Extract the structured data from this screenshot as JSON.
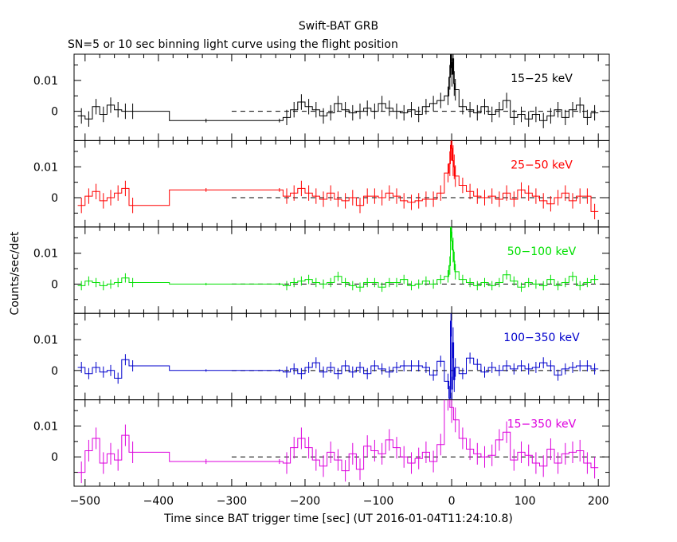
{
  "title": "Swift-BAT GRB",
  "subtitle": "SN=5 or 10 sec binning light curve using the flight position",
  "chart_data": {
    "type": "line",
    "title": "Swift-BAT GRB",
    "subtitle": "SN=5 or 10 sec binning light curve using the flight position",
    "xlabel": "Time since BAT trigger time [sec] (UT 2016-01-04T11:24:10.8)",
    "ylabel": "Counts/sec/det",
    "xlim": [
      -515,
      215
    ],
    "ylim": [
      -0.0095,
      0.0185
    ],
    "x_ticks": [
      -500,
      -400,
      -300,
      -200,
      -100,
      0,
      100,
      200
    ],
    "x_tick_labels": [
      "−500",
      "−400",
      "−300",
      "−200",
      "−100",
      "0",
      "100",
      "200"
    ],
    "y_ticks": [
      0,
      0.01
    ],
    "y_tick_labels": [
      "0",
      "0.01"
    ],
    "gap": [
      -335,
      -235
    ],
    "panels": [
      {
        "name": "15−25 keV",
        "color": "#000000",
        "x": [
          -505,
          -495,
          -485,
          -475,
          -465,
          -455,
          -445,
          -435,
          -335,
          -235,
          -225,
          -215,
          -205,
          -195,
          -185,
          -175,
          -165,
          -155,
          -145,
          -135,
          -125,
          -115,
          -105,
          -95,
          -85,
          -75,
          -65,
          -55,
          -45,
          -35,
          -25,
          -15,
          -5,
          -2.5,
          -1,
          0.5,
          2,
          3.5,
          5,
          15,
          25,
          35,
          45,
          55,
          65,
          75,
          85,
          95,
          105,
          115,
          125,
          135,
          145,
          155,
          165,
          175,
          185,
          195
        ],
        "values": [
          -0.0015,
          -0.0025,
          0.0015,
          -0.001,
          0.002,
          0.0005,
          0.0,
          0.0,
          -0.003,
          -0.003,
          -0.002,
          0.0005,
          0.003,
          0.0015,
          0.0005,
          -0.0015,
          -0.0005,
          0.0025,
          0.0005,
          -0.0005,
          0.0,
          0.001,
          0.0,
          0.0025,
          0.001,
          0.0,
          -0.0005,
          0.0005,
          -0.001,
          0.0015,
          0.0025,
          0.0035,
          0.005,
          0.011,
          0.019,
          0.012,
          0.017,
          0.009,
          0.007,
          0.0015,
          0.0005,
          -0.0005,
          0.0015,
          -0.001,
          0.0005,
          0.0035,
          -0.002,
          -0.001,
          -0.0025,
          -0.001,
          -0.003,
          -0.0015,
          0.0005,
          -0.002,
          0.0005,
          0.002,
          -0.002,
          -0.0005
        ],
        "errors": [
          0.0025,
          0.0025,
          0.0025,
          0.0025,
          0.0025,
          0.0025,
          0.0025,
          0.0025,
          0.0006,
          0.0006,
          0.0025,
          0.0025,
          0.0025,
          0.0025,
          0.0025,
          0.0025,
          0.0025,
          0.0025,
          0.0025,
          0.0025,
          0.0025,
          0.0025,
          0.0025,
          0.0025,
          0.0025,
          0.0025,
          0.0025,
          0.0025,
          0.0025,
          0.0025,
          0.0025,
          0.0025,
          0.003,
          0.004,
          0.005,
          0.004,
          0.005,
          0.004,
          0.0035,
          0.0025,
          0.0025,
          0.0025,
          0.0025,
          0.0025,
          0.0025,
          0.0025,
          0.0025,
          0.0025,
          0.0025,
          0.0025,
          0.0025,
          0.0025,
          0.0025,
          0.0025,
          0.0025,
          0.0025,
          0.0025,
          0.0025
        ]
      },
      {
        "name": "25−50 keV",
        "color": "#ff0000",
        "x": [
          -505,
          -495,
          -485,
          -475,
          -465,
          -455,
          -445,
          -435,
          -335,
          -235,
          -225,
          -215,
          -205,
          -195,
          -185,
          -175,
          -165,
          -155,
          -145,
          -135,
          -125,
          -115,
          -105,
          -95,
          -85,
          -75,
          -65,
          -55,
          -45,
          -35,
          -25,
          -15,
          -5,
          -2.5,
          -1,
          0.5,
          2,
          3.5,
          5,
          15,
          25,
          35,
          45,
          55,
          65,
          75,
          85,
          95,
          105,
          115,
          125,
          135,
          145,
          155,
          165,
          175,
          185,
          195
        ],
        "values": [
          -0.0025,
          0.0005,
          0.002,
          -0.001,
          0.0,
          0.0015,
          0.003,
          -0.0025,
          0.0025,
          0.0025,
          0.0005,
          0.0015,
          0.003,
          0.0015,
          0.0005,
          -0.0005,
          0.0015,
          -0.0005,
          -0.001,
          0.0,
          -0.0025,
          0.0005,
          0.0005,
          0.0,
          0.0015,
          0.0005,
          -0.001,
          -0.0015,
          -0.001,
          -0.0005,
          -0.0005,
          0.0015,
          0.008,
          0.011,
          0.017,
          0.016,
          0.012,
          0.01,
          0.007,
          0.004,
          0.002,
          0.0005,
          0.0,
          0.0005,
          -0.0005,
          0.0015,
          -0.0005,
          0.0025,
          0.0015,
          0.0005,
          -0.001,
          -0.002,
          0.0,
          0.0015,
          -0.001,
          0.0005,
          0.0005,
          -0.0045
        ],
        "errors": [
          0.0025,
          0.0025,
          0.0025,
          0.0025,
          0.0025,
          0.0025,
          0.0025,
          0.0025,
          0.0006,
          0.0006,
          0.0025,
          0.0025,
          0.0025,
          0.0025,
          0.0025,
          0.0025,
          0.0025,
          0.0025,
          0.0025,
          0.0025,
          0.0025,
          0.0025,
          0.0025,
          0.0025,
          0.0025,
          0.0025,
          0.0025,
          0.0025,
          0.0025,
          0.0025,
          0.0025,
          0.0025,
          0.003,
          0.004,
          0.005,
          0.004,
          0.005,
          0.004,
          0.0035,
          0.0025,
          0.0025,
          0.0025,
          0.0025,
          0.0025,
          0.0025,
          0.0025,
          0.0025,
          0.0025,
          0.0025,
          0.0025,
          0.0025,
          0.0025,
          0.0025,
          0.0025,
          0.0025,
          0.0025,
          0.0025,
          0.0025
        ]
      },
      {
        "name": "50−100 keV",
        "color": "#00e000",
        "x": [
          -505,
          -495,
          -485,
          -475,
          -465,
          -455,
          -445,
          -435,
          -335,
          -235,
          -225,
          -215,
          -205,
          -195,
          -185,
          -175,
          -165,
          -155,
          -145,
          -135,
          -125,
          -115,
          -105,
          -95,
          -85,
          -75,
          -65,
          -55,
          -45,
          -35,
          -25,
          -15,
          -5,
          -2.5,
          -1,
          0.5,
          2,
          3.5,
          5,
          15,
          25,
          35,
          45,
          55,
          65,
          75,
          85,
          95,
          105,
          115,
          125,
          135,
          145,
          155,
          165,
          175,
          185,
          195
        ],
        "values": [
          -0.0005,
          0.001,
          0.0005,
          -0.0005,
          0.0,
          0.0005,
          0.002,
          0.0005,
          0.0,
          0.0,
          -0.0005,
          0.0005,
          0.001,
          0.0015,
          0.0005,
          0.0,
          0.0005,
          0.0025,
          0.0005,
          -0.0005,
          -0.001,
          0.0005,
          0.0005,
          -0.001,
          0.0005,
          0.0005,
          0.0015,
          -0.0005,
          0.0,
          0.001,
          0.0,
          0.0015,
          0.0025,
          0.006,
          0.019,
          0.014,
          0.011,
          0.0075,
          0.004,
          0.0015,
          0.0005,
          -0.0005,
          0.0005,
          -0.0005,
          0.0005,
          0.003,
          0.001,
          -0.001,
          0.0005,
          0.0,
          -0.0005,
          0.0015,
          -0.0005,
          0.0005,
          0.0025,
          -0.0005,
          0.0005,
          0.0015
        ],
        "errors": [
          0.0015,
          0.0015,
          0.0015,
          0.0015,
          0.0015,
          0.0015,
          0.0015,
          0.0015,
          0.0004,
          0.0004,
          0.0015,
          0.0015,
          0.0015,
          0.0015,
          0.0015,
          0.0015,
          0.0015,
          0.0015,
          0.0015,
          0.0015,
          0.0015,
          0.0015,
          0.0015,
          0.0015,
          0.0015,
          0.0015,
          0.0015,
          0.0015,
          0.0015,
          0.0015,
          0.0015,
          0.0015,
          0.002,
          0.003,
          0.004,
          0.003,
          0.004,
          0.003,
          0.0025,
          0.0015,
          0.0015,
          0.0015,
          0.0015,
          0.0015,
          0.0015,
          0.0015,
          0.0015,
          0.0015,
          0.0015,
          0.0015,
          0.0015,
          0.0015,
          0.0015,
          0.0015,
          0.0015,
          0.0015,
          0.0015,
          0.0015
        ]
      },
      {
        "name": "100−350 keV",
        "color": "#0000cc",
        "x": [
          -505,
          -495,
          -485,
          -475,
          -465,
          -455,
          -445,
          -435,
          -335,
          -235,
          -225,
          -215,
          -205,
          -195,
          -185,
          -175,
          -165,
          -155,
          -145,
          -135,
          -125,
          -115,
          -105,
          -95,
          -85,
          -75,
          -65,
          -55,
          -45,
          -35,
          -25,
          -15,
          -5,
          -2.5,
          -1,
          0.5,
          2,
          3.5,
          5,
          15,
          25,
          35,
          45,
          55,
          65,
          75,
          85,
          95,
          105,
          115,
          125,
          135,
          145,
          155,
          165,
          175,
          185,
          195
        ],
        "values": [
          0.001,
          -0.001,
          0.001,
          -0.0005,
          0.0,
          -0.0025,
          0.0035,
          0.0015,
          0.0,
          0.0,
          -0.0005,
          0.0005,
          -0.001,
          0.001,
          0.0025,
          -0.0005,
          0.001,
          -0.001,
          0.0015,
          -0.0005,
          0.001,
          -0.001,
          0.0015,
          0.0005,
          -0.0005,
          0.001,
          0.0015,
          0.0015,
          0.0015,
          0.001,
          -0.0015,
          0.003,
          -0.0035,
          -0.009,
          0.016,
          -0.006,
          0.009,
          -0.003,
          0.001,
          -0.001,
          0.004,
          0.002,
          -0.0005,
          0.001,
          0.0,
          0.0015,
          0.0005,
          0.0015,
          0.0005,
          0.001,
          0.0025,
          0.0015,
          -0.0015,
          0.0005,
          0.001,
          0.0015,
          0.0015,
          0.0005
        ],
        "errors": [
          0.0018,
          0.0018,
          0.0018,
          0.0018,
          0.0018,
          0.0018,
          0.0018,
          0.0018,
          0.0004,
          0.0004,
          0.0018,
          0.0018,
          0.0018,
          0.0018,
          0.0018,
          0.0018,
          0.0018,
          0.0018,
          0.0018,
          0.0018,
          0.0018,
          0.0018,
          0.0018,
          0.0018,
          0.0018,
          0.0018,
          0.0018,
          0.0018,
          0.0018,
          0.0018,
          0.0018,
          0.0018,
          0.0025,
          0.004,
          0.005,
          0.004,
          0.005,
          0.004,
          0.003,
          0.0018,
          0.0018,
          0.0018,
          0.0018,
          0.0018,
          0.0018,
          0.0018,
          0.0018,
          0.0018,
          0.0018,
          0.0018,
          0.0018,
          0.0018,
          0.0018,
          0.0018,
          0.0018,
          0.0018,
          0.0018,
          0.0018
        ]
      },
      {
        "name": "15−350 keV",
        "color": "#dd00dd",
        "x": [
          -505,
          -495,
          -485,
          -475,
          -465,
          -455,
          -445,
          -435,
          -335,
          -235,
          -225,
          -215,
          -205,
          -195,
          -185,
          -175,
          -165,
          -155,
          -145,
          -135,
          -125,
          -115,
          -105,
          -95,
          -85,
          -75,
          -65,
          -55,
          -45,
          -35,
          -25,
          -15,
          -5,
          0,
          5,
          15,
          25,
          35,
          45,
          55,
          65,
          75,
          85,
          95,
          105,
          115,
          125,
          135,
          145,
          155,
          165,
          175,
          185,
          195
        ],
        "values": [
          -0.005,
          0.002,
          0.006,
          -0.002,
          0.001,
          -0.001,
          0.007,
          0.0015,
          -0.0015,
          -0.0015,
          -0.002,
          0.003,
          0.006,
          0.003,
          -0.001,
          -0.003,
          0.0015,
          -0.001,
          -0.0045,
          0.001,
          -0.004,
          0.0035,
          0.002,
          0.001,
          0.0055,
          0.003,
          0.0,
          -0.002,
          -0.0005,
          0.0015,
          -0.0015,
          0.004,
          0.019,
          0.016,
          0.012,
          0.006,
          0.0025,
          0.001,
          0.0,
          0.0005,
          0.0055,
          0.008,
          -0.001,
          0.0015,
          0.0005,
          -0.002,
          -0.003,
          0.0025,
          -0.002,
          0.001,
          0.0015,
          0.002,
          -0.002,
          -0.0035
        ],
        "errors": [
          0.0035,
          0.0035,
          0.0035,
          0.0035,
          0.0035,
          0.0035,
          0.0035,
          0.0035,
          0.0008,
          0.0008,
          0.0035,
          0.0035,
          0.0035,
          0.0035,
          0.0035,
          0.0035,
          0.0035,
          0.0035,
          0.0035,
          0.0035,
          0.0035,
          0.0035,
          0.0035,
          0.0035,
          0.0035,
          0.0035,
          0.0035,
          0.0035,
          0.0035,
          0.0035,
          0.0035,
          0.0035,
          0.004,
          0.005,
          0.004,
          0.0035,
          0.0035,
          0.0035,
          0.0035,
          0.0035,
          0.0035,
          0.0035,
          0.0035,
          0.0035,
          0.0035,
          0.0035,
          0.0035,
          0.0035,
          0.0035,
          0.0035,
          0.0035,
          0.0035,
          0.0035,
          0.0035
        ]
      }
    ]
  }
}
